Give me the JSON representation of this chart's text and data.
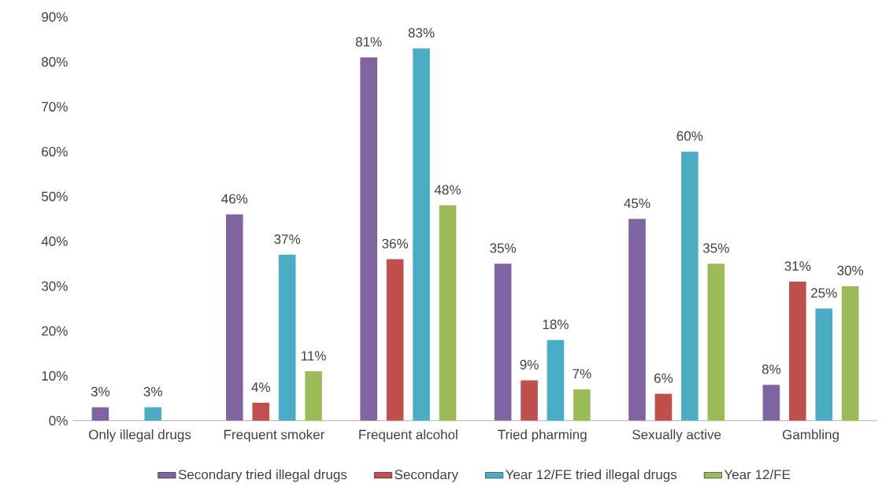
{
  "chart_data": {
    "type": "bar",
    "categories": [
      "Only illegal drugs",
      "Frequent smoker",
      "Frequent alcohol",
      "Tried pharming",
      "Sexually active",
      "Gambling"
    ],
    "series": [
      {
        "name": "Secondary tried illegal drugs",
        "color": "#8064a2",
        "values": [
          3,
          46,
          81,
          35,
          45,
          8
        ],
        "value_labels": [
          "3%",
          "46%",
          "81%",
          "35%",
          "45%",
          "8%"
        ]
      },
      {
        "name": "Secondary",
        "color": "#c0504d",
        "values": [
          null,
          4,
          36,
          9,
          6,
          31
        ],
        "value_labels": [
          null,
          "4%",
          "36%",
          "9%",
          "6%",
          "31%"
        ]
      },
      {
        "name": "Year 12/FE tried illegal drugs",
        "color": "#4bacc6",
        "values": [
          3,
          37,
          83,
          18,
          60,
          25
        ],
        "value_labels": [
          "3%",
          "37%",
          "83%",
          "18%",
          "60%",
          "25%"
        ]
      },
      {
        "name": "Year 12/FE",
        "color": "#9bbb59",
        "values": [
          null,
          11,
          48,
          7,
          35,
          30
        ],
        "value_labels": [
          null,
          "11%",
          "48%",
          "7%",
          "35%",
          "30%"
        ]
      }
    ],
    "ylim": [
      0,
      90
    ],
    "yticks": [
      {
        "value": 0,
        "label": "0%"
      },
      {
        "value": 10,
        "label": "10%"
      },
      {
        "value": 20,
        "label": "20%"
      },
      {
        "value": 30,
        "label": "30%"
      },
      {
        "value": 40,
        "label": "40%"
      },
      {
        "value": 50,
        "label": "50%"
      },
      {
        "value": 60,
        "label": "60%"
      },
      {
        "value": 70,
        "label": "70%"
      },
      {
        "value": 80,
        "label": "80%"
      },
      {
        "value": 90,
        "label": "90%"
      }
    ],
    "grid": false,
    "legend": "bottom"
  }
}
